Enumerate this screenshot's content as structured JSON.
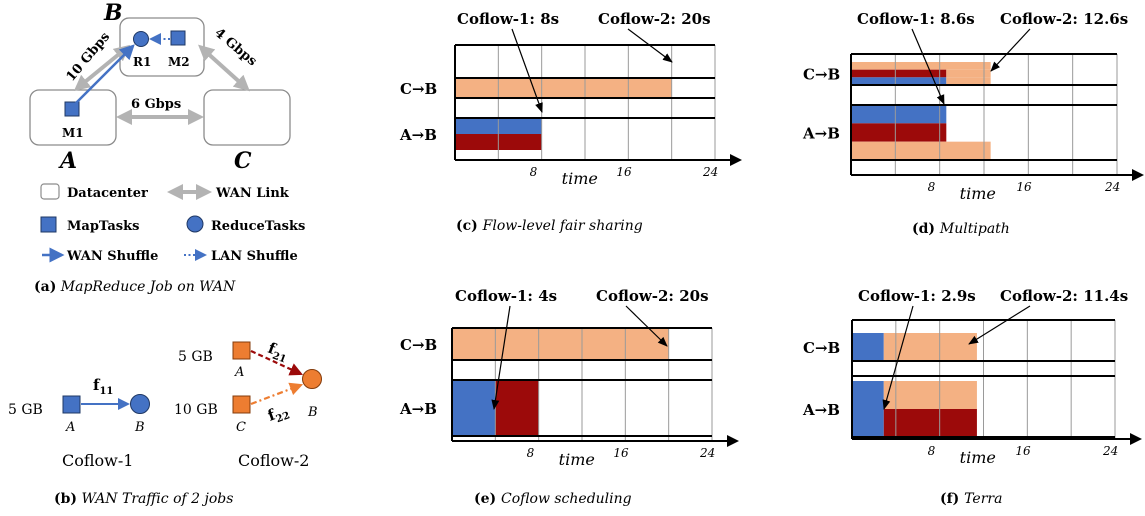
{
  "colors": {
    "blue": "#4472c4",
    "dark_red": "#9c0a0a",
    "peach": "#f4b183",
    "orange": "#ed7d31",
    "link_gray": "#b3b3b3",
    "box_stroke": "#8c8c8c"
  },
  "panel_a": {
    "dc_b": "B",
    "dc_a": "A",
    "dc_c": "C",
    "link_ab": "10 Gbps",
    "link_bc": "4 Gbps",
    "link_ac": "6 Gbps",
    "node_r1": "R1",
    "node_m2": "M2",
    "node_m1": "M1",
    "legend": {
      "datacenter": "Datacenter",
      "wan_link": "WAN Link",
      "maptasks": "MapTasks",
      "reducetasks": "ReduceTasks",
      "wan_shuffle": "WAN Shuffle",
      "lan_shuffle": "LAN Shuffle"
    },
    "caption_tag": "(a)",
    "caption": "MapReduce Job on WAN"
  },
  "panel_b": {
    "c1_size": "5 GB",
    "c1_flow_main": "f",
    "c1_flow_sub": "11",
    "c1_src": "A",
    "c1_dst": "B",
    "c1_name": "Coflow-1",
    "c2_size_a": "5 GB",
    "c2_size_c": "10 GB",
    "f21_main": "f",
    "f21_sub": "21",
    "f22_main": "f",
    "f22_sub": "22",
    "c2_src_a": "A",
    "c2_src_c": "C",
    "c2_dst": "B",
    "c2_name": "Coflow-2",
    "caption_tag": "(b)",
    "caption": "WAN Traffic of 2 jobs"
  },
  "chart_data": [
    {
      "type": "bar",
      "panel": "c",
      "caption_tag": "(c)",
      "caption": "Flow-level fair sharing",
      "xlabel": "time",
      "xlim": [
        0,
        24
      ],
      "xticks": [
        8,
        16,
        24
      ],
      "annotations": [
        "Coflow-1: 8s",
        "Coflow-2: 20s"
      ],
      "rows": [
        {
          "label": "C→B",
          "bands": [
            [
              {
                "start": 0,
                "end": 20,
                "color": "peach"
              }
            ]
          ]
        },
        {
          "label": "A→B",
          "bands": [
            [
              {
                "start": 0,
                "end": 8,
                "color": "blue"
              }
            ],
            [
              {
                "start": 0,
                "end": 8,
                "color": "dark_red"
              }
            ]
          ]
        }
      ]
    },
    {
      "type": "bar",
      "panel": "d",
      "caption_tag": "(d)",
      "caption": "Multipath",
      "xlabel": "time",
      "xlim": [
        0,
        24
      ],
      "xticks": [
        8,
        16,
        24
      ],
      "annotations": [
        "Coflow-1: 8.6s",
        "Coflow-2: 12.6s"
      ],
      "rows": [
        {
          "label": "C→B",
          "bands": [
            [
              {
                "start": 0,
                "end": 12.6,
                "color": "peach"
              }
            ],
            [
              {
                "start": 0,
                "end": 8.6,
                "color": "dark_red"
              },
              {
                "start": 8.6,
                "end": 12.6,
                "color": "peach"
              }
            ],
            [
              {
                "start": 0,
                "end": 8.6,
                "color": "blue"
              },
              {
                "start": 8.6,
                "end": 12.6,
                "color": "peach"
              }
            ]
          ]
        },
        {
          "label": "A→B",
          "bands": [
            [
              {
                "start": 0,
                "end": 8.6,
                "color": "blue"
              }
            ],
            [
              {
                "start": 0,
                "end": 8.6,
                "color": "dark_red"
              }
            ],
            [
              {
                "start": 0,
                "end": 12.6,
                "color": "peach"
              }
            ]
          ]
        }
      ]
    },
    {
      "type": "bar",
      "panel": "e",
      "caption_tag": "(e)",
      "caption": "Coflow scheduling",
      "xlabel": "time",
      "xlim": [
        0,
        24
      ],
      "xticks": [
        8,
        16,
        24
      ],
      "annotations": [
        "Coflow-1: 4s",
        "Coflow-2: 20s"
      ],
      "rows": [
        {
          "label": "C→B",
          "bands": [
            [
              {
                "start": 0,
                "end": 20,
                "color": "peach"
              }
            ]
          ]
        },
        {
          "label": "A→B",
          "bands": [
            [
              {
                "start": 0,
                "end": 4,
                "color": "blue"
              },
              {
                "start": 4,
                "end": 8,
                "color": "dark_red"
              }
            ]
          ]
        }
      ]
    },
    {
      "type": "bar",
      "panel": "f",
      "caption_tag": "(f)",
      "caption": "Terra",
      "xlabel": "time",
      "xlim": [
        0,
        24
      ],
      "xticks": [
        8,
        16,
        24
      ],
      "annotations": [
        "Coflow-1: 2.9s",
        "Coflow-2: 11.4s"
      ],
      "rows": [
        {
          "label": "C→B",
          "bands": [
            [
              {
                "start": 0,
                "end": 2.9,
                "color": "blue"
              },
              {
                "start": 2.9,
                "end": 11.4,
                "color": "peach"
              }
            ]
          ]
        },
        {
          "label": "A→B",
          "bands": [
            [
              {
                "start": 0,
                "end": 2.9,
                "color": "blue"
              },
              {
                "start": 2.9,
                "end": 11.4,
                "color": "peach"
              }
            ],
            [
              {
                "start": 0,
                "end": 2.9,
                "color": "blue"
              },
              {
                "start": 2.9,
                "end": 11.4,
                "color": "dark_red"
              }
            ]
          ]
        }
      ]
    }
  ]
}
